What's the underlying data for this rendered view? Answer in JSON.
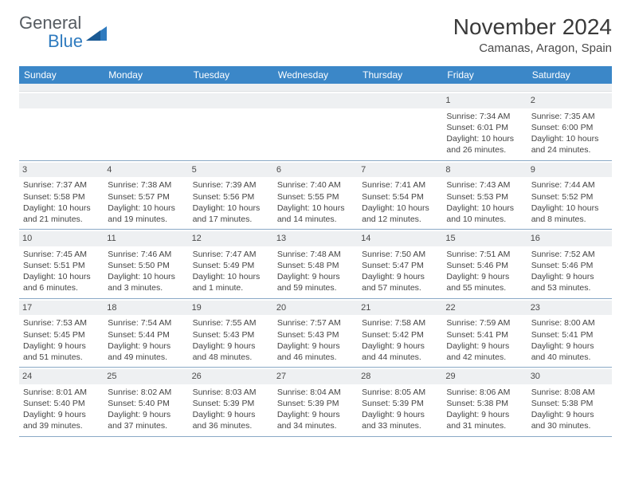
{
  "brand": {
    "name_gray": "General",
    "name_blue": "Blue"
  },
  "title": "November 2024",
  "location": "Camanas, Aragon, Spain",
  "colors": {
    "header_bg": "#3b87c8",
    "daynum_bg": "#eef0f2",
    "week_divider": "#8aa9c6",
    "brand_gray": "#555b61",
    "brand_blue": "#2f7bbf"
  },
  "day_names": [
    "Sunday",
    "Monday",
    "Tuesday",
    "Wednesday",
    "Thursday",
    "Friday",
    "Saturday"
  ],
  "weeks": [
    [
      {
        "day": "",
        "sunrise": "",
        "sunset": "",
        "daylight1": "",
        "daylight2": ""
      },
      {
        "day": "",
        "sunrise": "",
        "sunset": "",
        "daylight1": "",
        "daylight2": ""
      },
      {
        "day": "",
        "sunrise": "",
        "sunset": "",
        "daylight1": "",
        "daylight2": ""
      },
      {
        "day": "",
        "sunrise": "",
        "sunset": "",
        "daylight1": "",
        "daylight2": ""
      },
      {
        "day": "",
        "sunrise": "",
        "sunset": "",
        "daylight1": "",
        "daylight2": ""
      },
      {
        "day": "1",
        "sunrise": "Sunrise: 7:34 AM",
        "sunset": "Sunset: 6:01 PM",
        "daylight1": "Daylight: 10 hours",
        "daylight2": "and 26 minutes."
      },
      {
        "day": "2",
        "sunrise": "Sunrise: 7:35 AM",
        "sunset": "Sunset: 6:00 PM",
        "daylight1": "Daylight: 10 hours",
        "daylight2": "and 24 minutes."
      }
    ],
    [
      {
        "day": "3",
        "sunrise": "Sunrise: 7:37 AM",
        "sunset": "Sunset: 5:58 PM",
        "daylight1": "Daylight: 10 hours",
        "daylight2": "and 21 minutes."
      },
      {
        "day": "4",
        "sunrise": "Sunrise: 7:38 AM",
        "sunset": "Sunset: 5:57 PM",
        "daylight1": "Daylight: 10 hours",
        "daylight2": "and 19 minutes."
      },
      {
        "day": "5",
        "sunrise": "Sunrise: 7:39 AM",
        "sunset": "Sunset: 5:56 PM",
        "daylight1": "Daylight: 10 hours",
        "daylight2": "and 17 minutes."
      },
      {
        "day": "6",
        "sunrise": "Sunrise: 7:40 AM",
        "sunset": "Sunset: 5:55 PM",
        "daylight1": "Daylight: 10 hours",
        "daylight2": "and 14 minutes."
      },
      {
        "day": "7",
        "sunrise": "Sunrise: 7:41 AM",
        "sunset": "Sunset: 5:54 PM",
        "daylight1": "Daylight: 10 hours",
        "daylight2": "and 12 minutes."
      },
      {
        "day": "8",
        "sunrise": "Sunrise: 7:43 AM",
        "sunset": "Sunset: 5:53 PM",
        "daylight1": "Daylight: 10 hours",
        "daylight2": "and 10 minutes."
      },
      {
        "day": "9",
        "sunrise": "Sunrise: 7:44 AM",
        "sunset": "Sunset: 5:52 PM",
        "daylight1": "Daylight: 10 hours",
        "daylight2": "and 8 minutes."
      }
    ],
    [
      {
        "day": "10",
        "sunrise": "Sunrise: 7:45 AM",
        "sunset": "Sunset: 5:51 PM",
        "daylight1": "Daylight: 10 hours",
        "daylight2": "and 6 minutes."
      },
      {
        "day": "11",
        "sunrise": "Sunrise: 7:46 AM",
        "sunset": "Sunset: 5:50 PM",
        "daylight1": "Daylight: 10 hours",
        "daylight2": "and 3 minutes."
      },
      {
        "day": "12",
        "sunrise": "Sunrise: 7:47 AM",
        "sunset": "Sunset: 5:49 PM",
        "daylight1": "Daylight: 10 hours",
        "daylight2": "and 1 minute."
      },
      {
        "day": "13",
        "sunrise": "Sunrise: 7:48 AM",
        "sunset": "Sunset: 5:48 PM",
        "daylight1": "Daylight: 9 hours",
        "daylight2": "and 59 minutes."
      },
      {
        "day": "14",
        "sunrise": "Sunrise: 7:50 AM",
        "sunset": "Sunset: 5:47 PM",
        "daylight1": "Daylight: 9 hours",
        "daylight2": "and 57 minutes."
      },
      {
        "day": "15",
        "sunrise": "Sunrise: 7:51 AM",
        "sunset": "Sunset: 5:46 PM",
        "daylight1": "Daylight: 9 hours",
        "daylight2": "and 55 minutes."
      },
      {
        "day": "16",
        "sunrise": "Sunrise: 7:52 AM",
        "sunset": "Sunset: 5:46 PM",
        "daylight1": "Daylight: 9 hours",
        "daylight2": "and 53 minutes."
      }
    ],
    [
      {
        "day": "17",
        "sunrise": "Sunrise: 7:53 AM",
        "sunset": "Sunset: 5:45 PM",
        "daylight1": "Daylight: 9 hours",
        "daylight2": "and 51 minutes."
      },
      {
        "day": "18",
        "sunrise": "Sunrise: 7:54 AM",
        "sunset": "Sunset: 5:44 PM",
        "daylight1": "Daylight: 9 hours",
        "daylight2": "and 49 minutes."
      },
      {
        "day": "19",
        "sunrise": "Sunrise: 7:55 AM",
        "sunset": "Sunset: 5:43 PM",
        "daylight1": "Daylight: 9 hours",
        "daylight2": "and 48 minutes."
      },
      {
        "day": "20",
        "sunrise": "Sunrise: 7:57 AM",
        "sunset": "Sunset: 5:43 PM",
        "daylight1": "Daylight: 9 hours",
        "daylight2": "and 46 minutes."
      },
      {
        "day": "21",
        "sunrise": "Sunrise: 7:58 AM",
        "sunset": "Sunset: 5:42 PM",
        "daylight1": "Daylight: 9 hours",
        "daylight2": "and 44 minutes."
      },
      {
        "day": "22",
        "sunrise": "Sunrise: 7:59 AM",
        "sunset": "Sunset: 5:41 PM",
        "daylight1": "Daylight: 9 hours",
        "daylight2": "and 42 minutes."
      },
      {
        "day": "23",
        "sunrise": "Sunrise: 8:00 AM",
        "sunset": "Sunset: 5:41 PM",
        "daylight1": "Daylight: 9 hours",
        "daylight2": "and 40 minutes."
      }
    ],
    [
      {
        "day": "24",
        "sunrise": "Sunrise: 8:01 AM",
        "sunset": "Sunset: 5:40 PM",
        "daylight1": "Daylight: 9 hours",
        "daylight2": "and 39 minutes."
      },
      {
        "day": "25",
        "sunrise": "Sunrise: 8:02 AM",
        "sunset": "Sunset: 5:40 PM",
        "daylight1": "Daylight: 9 hours",
        "daylight2": "and 37 minutes."
      },
      {
        "day": "26",
        "sunrise": "Sunrise: 8:03 AM",
        "sunset": "Sunset: 5:39 PM",
        "daylight1": "Daylight: 9 hours",
        "daylight2": "and 36 minutes."
      },
      {
        "day": "27",
        "sunrise": "Sunrise: 8:04 AM",
        "sunset": "Sunset: 5:39 PM",
        "daylight1": "Daylight: 9 hours",
        "daylight2": "and 34 minutes."
      },
      {
        "day": "28",
        "sunrise": "Sunrise: 8:05 AM",
        "sunset": "Sunset: 5:39 PM",
        "daylight1": "Daylight: 9 hours",
        "daylight2": "and 33 minutes."
      },
      {
        "day": "29",
        "sunrise": "Sunrise: 8:06 AM",
        "sunset": "Sunset: 5:38 PM",
        "daylight1": "Daylight: 9 hours",
        "daylight2": "and 31 minutes."
      },
      {
        "day": "30",
        "sunrise": "Sunrise: 8:08 AM",
        "sunset": "Sunset: 5:38 PM",
        "daylight1": "Daylight: 9 hours",
        "daylight2": "and 30 minutes."
      }
    ]
  ]
}
